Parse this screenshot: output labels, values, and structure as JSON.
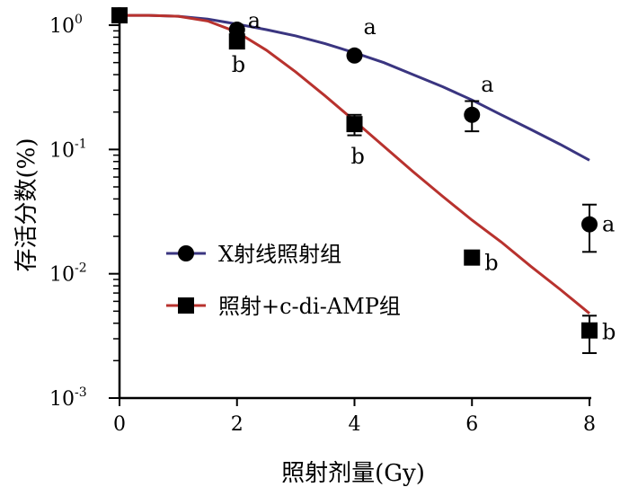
{
  "chart_data": {
    "type": "scatter",
    "xlabel": "照射剂量(Gy)",
    "ylabel": "存活分数(%)",
    "xlim": [
      0,
      8
    ],
    "ylim": [
      0.001,
      1.35
    ],
    "y_scale": "log",
    "grid": false,
    "legend_placement": "center-left",
    "x_ticks": [
      "0",
      "2",
      "4",
      "6",
      "8"
    ],
    "y_ticks": [
      {
        "value": 1,
        "base": "10",
        "exp": "0"
      },
      {
        "value": 0.1,
        "base": "10",
        "exp": "-1"
      },
      {
        "value": 0.01,
        "base": "10",
        "exp": "-2"
      },
      {
        "value": 0.001,
        "base": "10",
        "exp": "-3"
      }
    ],
    "series": [
      {
        "name": "X射线照射组",
        "marker": "circle",
        "line_color": "#3a3580",
        "points": [
          {
            "x": 0,
            "y": 1.2,
            "err": 0,
            "label": ""
          },
          {
            "x": 2,
            "y": 0.92,
            "err": 0,
            "label": "a"
          },
          {
            "x": 4,
            "y": 0.57,
            "err": 0,
            "label": "a"
          },
          {
            "x": 6,
            "y": 0.19,
            "err_low": 0.14,
            "err_high": 0.245,
            "label": "a"
          },
          {
            "x": 8,
            "y": 0.025,
            "err_low": 0.015,
            "err_high": 0.036,
            "label": "a"
          }
        ],
        "curve": [
          [
            0,
            1.2
          ],
          [
            0.5,
            1.2
          ],
          [
            1,
            1.18
          ],
          [
            1.5,
            1.12
          ],
          [
            2,
            1.02
          ],
          [
            2.5,
            0.92
          ],
          [
            3,
            0.82
          ],
          [
            3.5,
            0.71
          ],
          [
            4,
            0.6
          ],
          [
            4.5,
            0.5
          ],
          [
            5,
            0.4
          ],
          [
            5.5,
            0.32
          ],
          [
            6,
            0.25
          ],
          [
            6.5,
            0.19
          ],
          [
            7,
            0.145
          ],
          [
            7.5,
            0.11
          ],
          [
            8,
            0.082
          ]
        ]
      },
      {
        "name": "照射+c-di-AMP组",
        "marker": "square",
        "line_color": "#b8322e",
        "points": [
          {
            "x": 0,
            "y": 1.2,
            "err": 0,
            "label": ""
          },
          {
            "x": 2,
            "y": 0.74,
            "err": 0,
            "label": "b"
          },
          {
            "x": 4,
            "y": 0.16,
            "err_low": 0.13,
            "err_high": 0.19,
            "label": "b"
          },
          {
            "x": 6,
            "y": 0.0135,
            "err": 0,
            "label": "b"
          },
          {
            "x": 8,
            "y": 0.0035,
            "err_low": 0.0023,
            "err_high": 0.0046,
            "label": "b"
          }
        ],
        "curve": [
          [
            0,
            1.2
          ],
          [
            0.5,
            1.2
          ],
          [
            1,
            1.18
          ],
          [
            1.5,
            1.08
          ],
          [
            2,
            0.88
          ],
          [
            2.5,
            0.63
          ],
          [
            3,
            0.42
          ],
          [
            3.5,
            0.27
          ],
          [
            4,
            0.17
          ],
          [
            4.5,
            0.106
          ],
          [
            5,
            0.066
          ],
          [
            5.5,
            0.042
          ],
          [
            6,
            0.027
          ],
          [
            6.5,
            0.018
          ],
          [
            7,
            0.0115
          ],
          [
            7.5,
            0.0075
          ],
          [
            8,
            0.0048
          ]
        ]
      }
    ]
  }
}
